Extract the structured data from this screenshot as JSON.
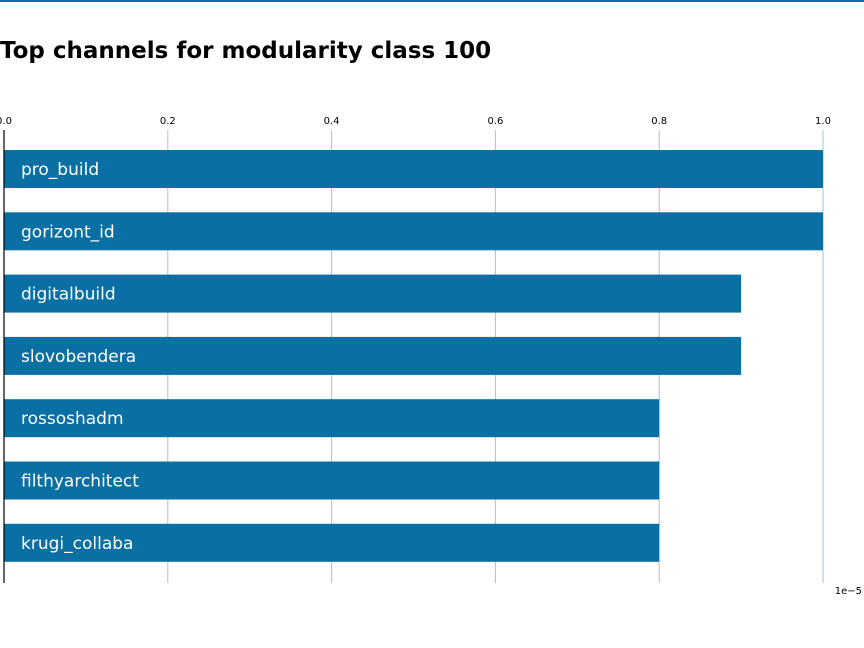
{
  "title": "Top channels for modularity class 100",
  "chart_data": {
    "type": "bar",
    "orientation": "horizontal",
    "title": "Top channels for modularity class 100",
    "categories": [
      "pro_build",
      "gorizont_id",
      "digitalbuild",
      "slovobendera",
      "rossoshadm",
      "filthyarchitect",
      "krugi_collaba"
    ],
    "values": [
      1.0,
      1.0,
      0.9,
      0.9,
      0.8,
      0.8,
      0.8
    ],
    "value_scale_label": "1e−5",
    "xlim": [
      0.0,
      1.0
    ],
    "xticks": [
      "0.0",
      "0.2",
      "0.4",
      "0.6",
      "0.8",
      "1.0"
    ],
    "xticks_position": "top",
    "grid": true,
    "bar_color": "#0a6fa3",
    "grid_color": "#a9c1d1"
  }
}
